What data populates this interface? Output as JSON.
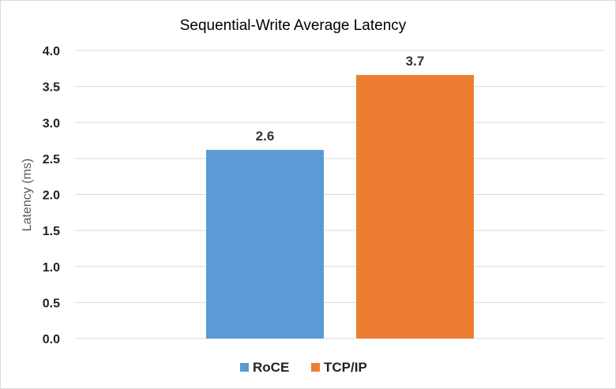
{
  "chart_data": {
    "type": "bar",
    "title": "Sequential-Write Average Latency",
    "xlabel": "",
    "ylabel": "Latency (ms)",
    "ylim": [
      0,
      4.0
    ],
    "yticks": [
      "0.0",
      "0.5",
      "1.0",
      "1.5",
      "2.0",
      "2.5",
      "3.0",
      "3.5",
      "4.0"
    ],
    "grid": true,
    "legend": "bottom",
    "series": [
      {
        "name": "RoCE",
        "values": [
          2.62
        ],
        "label": "2.6",
        "color": "#5b9bd5"
      },
      {
        "name": "TCP/IP",
        "values": [
          3.66
        ],
        "label": "3.7",
        "color": "#ed7d31"
      }
    ]
  }
}
